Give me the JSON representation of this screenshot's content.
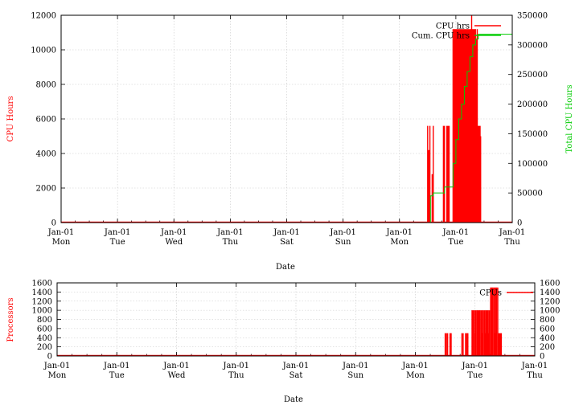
{
  "colors": {
    "red": "#ff0000",
    "green": "#00cc00",
    "grid": "#c8c8c8"
  },
  "chart_data": [
    {
      "type": "line",
      "xlabel": "Date",
      "ylabel": "CPU Hours",
      "y2label": "Total CPU Hours",
      "ylim": [
        0,
        12000
      ],
      "y2lim": [
        0,
        350000
      ],
      "yticks": [
        "0",
        "2000",
        "4000",
        "6000",
        "8000",
        "10000",
        "12000"
      ],
      "y2ticks": [
        "0",
        "50000",
        "100000",
        "150000",
        "200000",
        "250000",
        "300000",
        "350000"
      ],
      "xticks": [
        {
          "line1": "Jan-01",
          "line2": "Mon"
        },
        {
          "line1": "Jan-01",
          "line2": "Tue"
        },
        {
          "line1": "Jan-01",
          "line2": "Wed"
        },
        {
          "line1": "Jan-01",
          "line2": "Thu"
        },
        {
          "line1": "Jan-01",
          "line2": "Sat"
        },
        {
          "line1": "Jan-01",
          "line2": "Sun"
        },
        {
          "line1": "Jan-01",
          "line2": "Mon"
        },
        {
          "line1": "Jan-01",
          "line2": "Tue"
        },
        {
          "line1": "Jan-01",
          "line2": "Thu"
        }
      ],
      "x_range_days": [
        0,
        8
      ],
      "legend": "top-right",
      "grid": true,
      "series": [
        {
          "name": "CPU hrs",
          "axis": "left",
          "color": "#ff0000",
          "style": "impulse",
          "x": [
            6.5,
            6.52,
            6.54,
            6.56,
            6.58,
            6.6,
            6.78,
            6.8,
            6.82,
            6.84,
            6.86,
            6.88,
            6.9,
            6.95,
            6.96,
            6.97,
            6.98,
            6.99,
            7.0,
            7.01,
            7.02,
            7.03,
            7.04,
            7.05,
            7.06,
            7.07,
            7.08,
            7.09,
            7.1,
            7.11,
            7.12,
            7.13,
            7.14,
            7.15,
            7.16,
            7.17,
            7.18,
            7.19,
            7.2,
            7.21,
            7.22,
            7.23,
            7.24,
            7.25,
            7.26,
            7.27,
            7.28,
            7.29,
            7.3,
            7.31,
            7.32,
            7.33,
            7.34,
            7.35,
            7.36,
            7.37,
            7.38,
            7.39,
            7.4,
            7.41,
            7.42,
            7.43,
            7.44,
            7.45
          ],
          "y": [
            5600,
            4200,
            5600,
            0,
            2800,
            5600,
            5600,
            5600,
            0,
            5600,
            5600,
            5600,
            0,
            11200,
            10200,
            11200,
            0,
            11200,
            5600,
            11200,
            11200,
            0,
            11200,
            11200,
            2800,
            11200,
            11200,
            0,
            11200,
            11200,
            5600,
            11200,
            11200,
            0,
            11200,
            2800,
            11200,
            11200,
            0,
            11200,
            11200,
            5600,
            11200,
            0,
            11200,
            11200,
            12000,
            11200,
            0,
            11200,
            11200,
            5600,
            11200,
            11200,
            10600,
            0,
            11200,
            3400,
            5600,
            0,
            5600,
            5600,
            5000,
            0
          ]
        },
        {
          "name": "Cum. CPU hrs",
          "axis": "right",
          "color": "#00cc00",
          "style": "steps",
          "x": [
            6.5,
            6.55,
            6.6,
            6.8,
            6.9,
            6.95,
            7.0,
            7.05,
            7.1,
            7.15,
            7.2,
            7.25,
            7.3,
            7.35,
            7.4,
            7.45,
            8.0
          ],
          "y": [
            0,
            45000,
            50000,
            60000,
            60000,
            100000,
            140000,
            175000,
            200000,
            230000,
            255000,
            280000,
            300000,
            310000,
            318000,
            318000,
            318000
          ]
        }
      ]
    },
    {
      "type": "line",
      "xlabel": "Date",
      "ylabel": "Processors",
      "ylim": [
        0,
        1600
      ],
      "y2lim": [
        0,
        1600
      ],
      "yticks": [
        "0",
        "200",
        "400",
        "600",
        "800",
        "1000",
        "1200",
        "1400",
        "1600"
      ],
      "y2ticks": [
        "0",
        "200",
        "400",
        "600",
        "800",
        "1000",
        "1200",
        "1400",
        "1600"
      ],
      "xticks": [
        {
          "line1": "Jan-01",
          "line2": "Mon"
        },
        {
          "line1": "Jan-01",
          "line2": "Tue"
        },
        {
          "line1": "Jan-01",
          "line2": "Wed"
        },
        {
          "line1": "Jan-01",
          "line2": "Thu"
        },
        {
          "line1": "Jan-01",
          "line2": "Sat"
        },
        {
          "line1": "Jan-01",
          "line2": "Sun"
        },
        {
          "line1": "Jan-01",
          "line2": "Mon"
        },
        {
          "line1": "Jan-01",
          "line2": "Tue"
        },
        {
          "line1": "Jan-01",
          "line2": "Thu"
        }
      ],
      "x_range_days": [
        0,
        8
      ],
      "legend": "top-right",
      "grid": true,
      "series": [
        {
          "name": "CPUs",
          "axis": "left",
          "color": "#ff0000",
          "style": "impulse",
          "x": [
            6.5,
            6.52,
            6.54,
            6.56,
            6.58,
            6.6,
            6.78,
            6.8,
            6.82,
            6.84,
            6.86,
            6.88,
            6.9,
            6.95,
            6.96,
            6.97,
            6.98,
            6.99,
            7.0,
            7.01,
            7.02,
            7.03,
            7.04,
            7.05,
            7.06,
            7.07,
            7.08,
            7.09,
            7.1,
            7.11,
            7.12,
            7.13,
            7.14,
            7.15,
            7.16,
            7.17,
            7.18,
            7.19,
            7.2,
            7.21,
            7.22,
            7.23,
            7.24,
            7.25,
            7.26,
            7.27,
            7.28,
            7.29,
            7.3,
            7.31,
            7.32,
            7.33,
            7.34,
            7.35,
            7.36,
            7.37,
            7.38,
            7.39,
            7.4,
            7.41,
            7.42,
            7.43,
            7.44,
            7.45
          ],
          "y": [
            500,
            500,
            500,
            0,
            500,
            500,
            500,
            500,
            0,
            500,
            500,
            500,
            0,
            1000,
            1000,
            1000,
            0,
            1000,
            500,
            1000,
            1000,
            0,
            1000,
            1000,
            500,
            1000,
            1000,
            0,
            1000,
            1000,
            500,
            1000,
            1000,
            0,
            1000,
            500,
            1000,
            1000,
            0,
            1000,
            1000,
            500,
            1000,
            0,
            1500,
            1500,
            1500,
            1500,
            0,
            1500,
            1500,
            500,
            1500,
            1500,
            1500,
            0,
            1500,
            500,
            500,
            0,
            500,
            500,
            500,
            0
          ]
        }
      ]
    }
  ]
}
